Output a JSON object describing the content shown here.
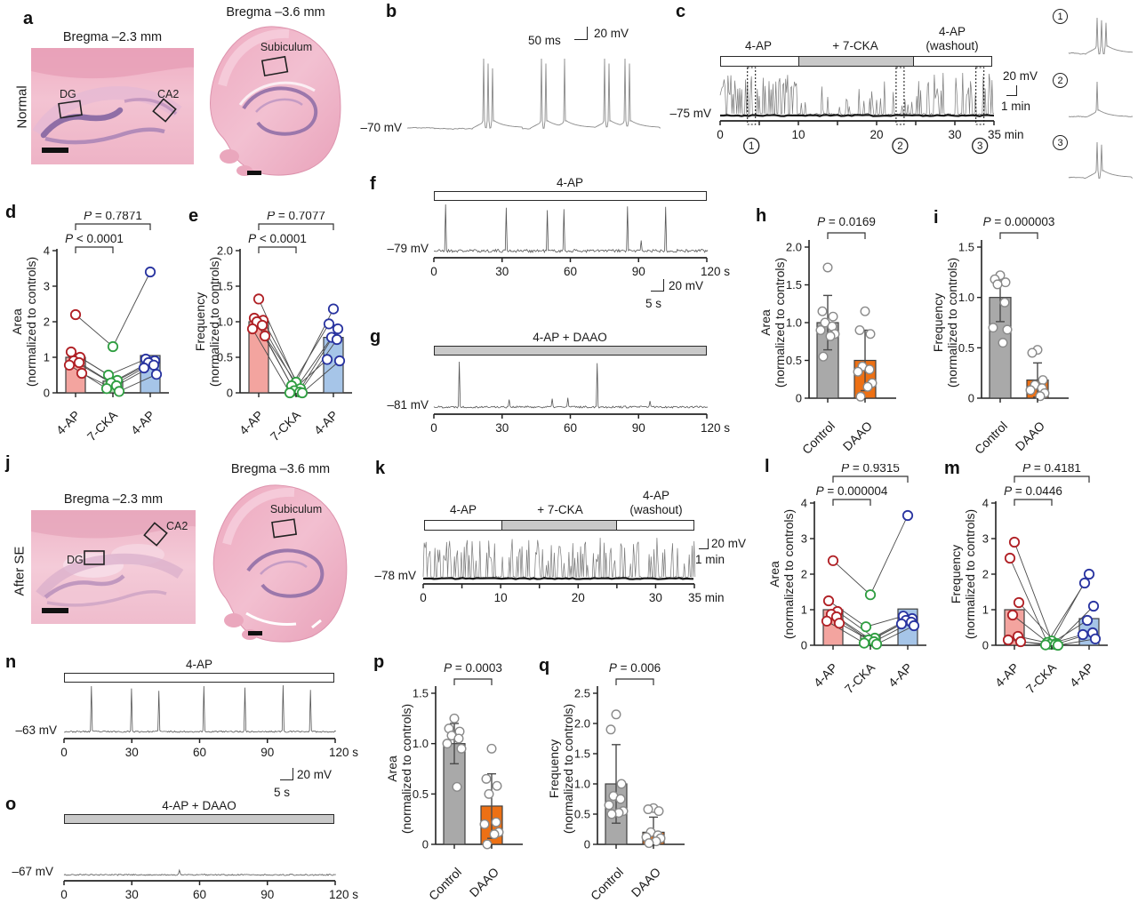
{
  "panels": {
    "a": {
      "letter": "a",
      "row_label": "Normal",
      "left_title": "Bregma –2.3 mm",
      "right_title": "Bregma –3.6 mm",
      "label_dg": "DG",
      "label_ca2": "CA2",
      "label_subiculum": "Subiculum"
    },
    "b": {
      "letter": "b",
      "baseline_label": "–70 mV",
      "scale_time": "50 ms",
      "scale_volt": "20 mV",
      "trace": {
        "bursts": [
          {
            "t": 0.3,
            "n": 3
          },
          {
            "t": 0.53,
            "n": 2
          },
          {
            "t": 0.62,
            "n": 1
          },
          {
            "t": 0.78,
            "n": 2
          },
          {
            "t": 0.86,
            "n": 2
          }
        ]
      }
    },
    "c": {
      "letter": "c",
      "drug1": "4-AP",
      "drug2": "+ 7-CKA",
      "drug3a": "4-AP",
      "drug3b": "(washout)",
      "baseline_label": "–75 mV",
      "scale_volt": "20 mV",
      "scale_time": "1 min",
      "insets": [
        {
          "num": "1",
          "spikes": 3
        },
        {
          "num": "2",
          "spikes": 1
        },
        {
          "num": "3",
          "spikes": 2
        }
      ],
      "trace": {
        "duration": 35,
        "regions": [
          {
            "t0": 0,
            "t1": 10,
            "rate": 5.5,
            "amin": 0.45,
            "amax": 1.0
          },
          {
            "t0": 10,
            "t1": 25,
            "rate": 1.6,
            "amin": 0.15,
            "amax": 0.7
          },
          {
            "t0": 25,
            "t1": 35,
            "rate": 2.8,
            "amin": 0.4,
            "amax": 1.0
          }
        ],
        "spikes": [
          {
            "t": 16.5,
            "a": 0.95
          },
          {
            "t": 21,
            "a": 0.8
          },
          {
            "t": 28.5,
            "a": 1.0
          },
          {
            "t": 31,
            "a": 1.0
          }
        ],
        "ticks": [
          0,
          5,
          10,
          15,
          20,
          25,
          30,
          35
        ],
        "labels": [
          {
            "t": 0,
            "text": "0"
          },
          {
            "t": 10,
            "text": "10"
          },
          {
            "t": 20,
            "text": "20"
          },
          {
            "t": 30,
            "text": "30"
          },
          {
            "t": 35,
            "text": "35 min",
            "end": true
          }
        ],
        "markers": [
          {
            "t": 4,
            "num": "1"
          },
          {
            "t": 23,
            "num": "2"
          },
          {
            "t": 33.2,
            "num": "3"
          }
        ]
      }
    },
    "d": {
      "letter": "d"
    },
    "e": {
      "letter": "e"
    },
    "f": {
      "letter": "f",
      "drug": "4-AP",
      "baseline_label": "–79 mV",
      "scale_volt": "20 mV",
      "scale_time": "5 s",
      "trace": {
        "duration": 120,
        "spikes": [
          {
            "t": 5,
            "a": 1
          },
          {
            "t": 32,
            "a": 0.93
          },
          {
            "t": 50,
            "a": 0.88
          },
          {
            "t": 57,
            "a": 0.9
          },
          {
            "t": 85,
            "a": 0.96
          },
          {
            "t": 91,
            "a": 0.25
          },
          {
            "t": 102,
            "a": 0.95
          }
        ],
        "ticks": [
          0,
          30,
          60,
          90,
          120
        ],
        "labels": [
          {
            "t": 0,
            "text": "0"
          },
          {
            "t": 30,
            "text": "30"
          },
          {
            "t": 60,
            "text": "60"
          },
          {
            "t": 90,
            "text": "90"
          },
          {
            "t": 120,
            "text": "120 s",
            "end": true
          }
        ]
      }
    },
    "g": {
      "letter": "g",
      "drug": "4-AP + DAAO",
      "baseline_label": "–81 mV",
      "trace": {
        "duration": 120,
        "spikes": [
          {
            "t": 11,
            "a": 1
          },
          {
            "t": 33,
            "a": 0.18
          },
          {
            "t": 52,
            "a": 0.2
          },
          {
            "t": 59,
            "a": 0.22
          },
          {
            "t": 72,
            "a": 0.97
          },
          {
            "t": 95,
            "a": 0.15
          }
        ],
        "ticks": [
          0,
          30,
          60,
          90,
          120
        ],
        "labels": [
          {
            "t": 0,
            "text": "0"
          },
          {
            "t": 30,
            "text": "30"
          },
          {
            "t": 60,
            "text": "60"
          },
          {
            "t": 90,
            "text": "90"
          },
          {
            "t": 120,
            "text": "120 s",
            "end": true
          }
        ]
      }
    },
    "h": {
      "letter": "h"
    },
    "i": {
      "letter": "i"
    },
    "j": {
      "letter": "j",
      "row_label": "After SE",
      "left_title": "Bregma –2.3 mm",
      "right_title": "Bregma –3.6 mm",
      "label_dg": "DG",
      "label_ca2": "CA2",
      "label_subiculum": "Subiculum"
    },
    "k": {
      "letter": "k",
      "drug1": "4-AP",
      "drug2": "+ 7-CKA",
      "drug3a": "4-AP",
      "drug3b": "(washout)",
      "baseline_label": "–78 mV",
      "scale_volt": "20 mV",
      "scale_time": "1 min",
      "trace": {
        "duration": 35,
        "regions": [
          {
            "t0": 0,
            "t1": 10,
            "rate": 4.5,
            "amin": 0.4,
            "amax": 0.95
          },
          {
            "t0": 10,
            "t1": 25,
            "rate": 3.6,
            "amin": 0.3,
            "amax": 1.0
          },
          {
            "t0": 25,
            "t1": 35,
            "rate": 3.0,
            "amin": 0.35,
            "amax": 1.0
          }
        ],
        "ticks": [
          0,
          5,
          10,
          15,
          20,
          25,
          30,
          35
        ],
        "labels": [
          {
            "t": 0,
            "text": "0"
          },
          {
            "t": 10,
            "text": "10"
          },
          {
            "t": 20,
            "text": "20"
          },
          {
            "t": 30,
            "text": "30"
          },
          {
            "t": 35,
            "text": "35 min",
            "end": true
          }
        ]
      }
    },
    "l": {
      "letter": "l"
    },
    "m": {
      "letter": "m"
    },
    "n": {
      "letter": "n",
      "drug": "4-AP",
      "baseline_label": "–63 mV",
      "scale_volt": "20 mV",
      "scale_time": "5 s",
      "trace": {
        "duration": 120,
        "spikes": [
          {
            "t": 12,
            "a": 1
          },
          {
            "t": 30,
            "a": 0.95
          },
          {
            "t": 42,
            "a": 0.9
          },
          {
            "t": 62,
            "a": 1
          },
          {
            "t": 80,
            "a": 0.97
          },
          {
            "t": 97,
            "a": 1.02
          },
          {
            "t": 109,
            "a": 0.92
          }
        ],
        "ticks": [
          0,
          30,
          60,
          90,
          120
        ],
        "labels": [
          {
            "t": 0,
            "text": "0"
          },
          {
            "t": 30,
            "text": "30"
          },
          {
            "t": 60,
            "text": "60"
          },
          {
            "t": 90,
            "text": "90"
          },
          {
            "t": 120,
            "text": "120 s",
            "end": true
          }
        ]
      }
    },
    "o": {
      "letter": "o",
      "drug": "4-AP + DAAO",
      "baseline_label": "–67 mV",
      "trace": {
        "duration": 120,
        "spikes": [
          {
            "t": 51,
            "a": 0.12
          }
        ],
        "ticks": [
          0,
          30,
          60,
          90,
          120
        ],
        "labels": [
          {
            "t": 0,
            "text": "0"
          },
          {
            "t": 30,
            "text": "30"
          },
          {
            "t": 60,
            "text": "60"
          },
          {
            "t": 90,
            "text": "90"
          },
          {
            "t": 120,
            "text": "120 s",
            "end": true
          }
        ]
      }
    },
    "p": {
      "letter": "p"
    },
    "q": {
      "letter": "q"
    }
  },
  "chart_data": [
    {
      "id": "d",
      "type": "paired",
      "ylabel": [
        "Area",
        "(normalized to controls)"
      ],
      "ylim": [
        0,
        4
      ],
      "yticks": [
        "0",
        "1",
        "2",
        "3",
        "4"
      ],
      "categories": [
        "4-AP",
        "7-CKA",
        "4-AP"
      ],
      "bar_values": [
        1.0,
        0.33,
        1.05
      ],
      "bar_fills": [
        "#f3a49f",
        "#badbba",
        "#a6c5e8"
      ],
      "point_strokes": [
        "#b01f24",
        "#2f9e41",
        "#2833a0"
      ],
      "points": [
        [
          2.2,
          1.15,
          1.0,
          0.9,
          0.85,
          0.78,
          0.55
        ],
        [
          1.3,
          0.5,
          0.35,
          0.28,
          0.2,
          0.12,
          0.04
        ],
        [
          3.4,
          0.95,
          0.9,
          0.85,
          0.78,
          0.7,
          0.52
        ]
      ],
      "brackets": [
        {
          "label": "P = 0.7871",
          "from": 0,
          "to": 2,
          "level": 1
        },
        {
          "label": "P < 0.0001",
          "from": 0,
          "to": 1,
          "level": 0
        }
      ]
    },
    {
      "id": "e",
      "type": "paired",
      "ylabel": [
        "Frequency",
        "(normalized to controls)"
      ],
      "ylim": [
        0,
        2
      ],
      "yticks": [
        "0",
        "0.5",
        "1.0",
        "1.5",
        "2.0"
      ],
      "categories": [
        "4-AP",
        "7-CKA",
        "4-AP"
      ],
      "bar_values": [
        1.0,
        0.05,
        0.78
      ],
      "bar_fills": [
        "#f3a49f",
        "#badbba",
        "#a6c5e8"
      ],
      "point_strokes": [
        "#b01f24",
        "#2f9e41",
        "#2833a0"
      ],
      "points": [
        [
          1.32,
          1.05,
          1.02,
          1.0,
          0.95,
          0.9,
          0.8
        ],
        [
          0.15,
          0.1,
          0.06,
          0.03,
          0.01,
          0.0,
          0.0
        ],
        [
          1.18,
          0.97,
          0.9,
          0.78,
          0.75,
          0.47,
          0.45
        ]
      ],
      "brackets": [
        {
          "label": "P = 0.7077",
          "from": 0,
          "to": 2,
          "level": 1
        },
        {
          "label": "P < 0.0001",
          "from": 0,
          "to": 1,
          "level": 0
        }
      ]
    },
    {
      "id": "h",
      "type": "twobar",
      "ylabel": [
        "Area",
        "(normalized to controls)"
      ],
      "ylim": [
        0,
        2
      ],
      "yticks": [
        "0",
        "0.5",
        "1.0",
        "1.5",
        "2.0"
      ],
      "categories": [
        "Control",
        "DAAO"
      ],
      "bar_values": [
        1.0,
        0.5
      ],
      "errors": [
        0.36,
        0.4
      ],
      "bar_fills": [
        "#a9a9a9",
        "#ed7014"
      ],
      "points": [
        [
          1.73,
          1.15,
          1.08,
          1.0,
          0.95,
          0.9,
          0.85,
          0.82,
          0.55
        ],
        [
          1.15,
          0.9,
          0.85,
          0.42,
          0.38,
          0.35,
          0.2,
          0.15,
          0.02
        ]
      ],
      "p_label": "P = 0.0169"
    },
    {
      "id": "i",
      "type": "twobar",
      "ylabel": [
        "Frequency",
        "(normalized to controls)"
      ],
      "ylim": [
        0,
        1.5
      ],
      "yticks": [
        "0",
        "0.5",
        "1.0",
        "1.5"
      ],
      "categories": [
        "Control",
        "DAAO"
      ],
      "bar_values": [
        1.0,
        0.18
      ],
      "errors": [
        0.24,
        0.17
      ],
      "bar_fills": [
        "#a9a9a9",
        "#ed7014"
      ],
      "points": [
        [
          1.22,
          1.18,
          1.15,
          1.13,
          0.95,
          0.7,
          0.68,
          0.55
        ],
        [
          0.48,
          0.45,
          0.18,
          0.13,
          0.1,
          0.08,
          0.05,
          0.02
        ]
      ],
      "p_label": "P = 0.000003"
    },
    {
      "id": "l",
      "type": "paired",
      "ylabel": [
        "Area",
        "(normalized to controls)"
      ],
      "ylim": [
        0,
        4
      ],
      "yticks": [
        "0",
        "1",
        "2",
        "3",
        "4"
      ],
      "categories": [
        "4-AP",
        "7-CKA",
        "4-AP"
      ],
      "bar_values": [
        1.0,
        0.27,
        1.02
      ],
      "bar_fills": [
        "#f3a49f",
        "#badbba",
        "#a6c5e8"
      ],
      "point_strokes": [
        "#b01f24",
        "#2f9e41",
        "#2833a0"
      ],
      "points": [
        [
          2.38,
          1.25,
          0.95,
          0.87,
          0.8,
          0.68,
          0.62
        ],
        [
          1.42,
          0.52,
          0.2,
          0.15,
          0.1,
          0.06,
          0.03
        ],
        [
          3.65,
          0.82,
          0.75,
          0.7,
          0.65,
          0.6,
          0.55
        ]
      ],
      "brackets": [
        {
          "label": "P = 0.9315",
          "from": 0,
          "to": 2,
          "level": 1
        },
        {
          "label": "P = 0.000004",
          "from": 0,
          "to": 1,
          "level": 0
        }
      ]
    },
    {
      "id": "m",
      "type": "paired",
      "ylabel": [
        "Frequency",
        "(normalized to controls)"
      ],
      "ylim": [
        0,
        4
      ],
      "yticks": [
        "0",
        "1",
        "2",
        "3",
        "4"
      ],
      "categories": [
        "4-AP",
        "7-CKA",
        "4-AP"
      ],
      "bar_values": [
        1.0,
        0.07,
        0.75
      ],
      "bar_fills": [
        "#f3a49f",
        "#badbba",
        "#a6c5e8"
      ],
      "point_strokes": [
        "#b01f24",
        "#2f9e41",
        "#2833a0"
      ],
      "points": [
        [
          2.9,
          2.45,
          1.2,
          0.85,
          0.25,
          0.15,
          0.1
        ],
        [
          0.12,
          0.08,
          0.05,
          0.03,
          0.02,
          0.01,
          0.0
        ],
        [
          2.0,
          1.75,
          1.1,
          0.7,
          0.35,
          0.3,
          0.18
        ]
      ],
      "brackets": [
        {
          "label": "P = 0.4181",
          "from": 0,
          "to": 2,
          "level": 1
        },
        {
          "label": "P = 0.0446",
          "from": 0,
          "to": 1,
          "level": 0
        }
      ]
    },
    {
      "id": "p",
      "type": "twobar",
      "ylabel": [
        "Area",
        "(normalized to controls)"
      ],
      "ylim": [
        0,
        1.5
      ],
      "yticks": [
        "0",
        "0.5",
        "1.0",
        "1.5"
      ],
      "categories": [
        "Control",
        "DAAO"
      ],
      "bar_values": [
        1.0,
        0.38
      ],
      "errors": [
        0.2,
        0.32
      ],
      "bar_fills": [
        "#a9a9a9",
        "#ed7014"
      ],
      "points": [
        [
          1.25,
          1.15,
          1.12,
          1.08,
          1.05,
          1.0,
          0.95,
          0.57
        ],
        [
          0.95,
          0.65,
          0.58,
          0.5,
          0.22,
          0.2,
          0.12,
          0.1,
          0.0
        ]
      ],
      "p_label": "P = 0.0003"
    },
    {
      "id": "q",
      "type": "twobar",
      "ylabel": [
        "Frequency",
        "(normalized to controls)"
      ],
      "ylim": [
        0,
        2.5
      ],
      "yticks": [
        "0",
        "0.5",
        "1.0",
        "1.5",
        "2.0",
        "2.5"
      ],
      "categories": [
        "Control",
        "DAAO"
      ],
      "bar_values": [
        1.0,
        0.2
      ],
      "errors": [
        0.65,
        0.25
      ],
      "bar_fills": [
        "#a9a9a9",
        "#ed7014"
      ],
      "points": [
        [
          2.15,
          1.9,
          1.0,
          0.8,
          0.75,
          0.65,
          0.55,
          0.52,
          0.5
        ],
        [
          0.6,
          0.58,
          0.55,
          0.2,
          0.15,
          0.12,
          0.1,
          0.05,
          0.02
        ]
      ],
      "p_label": "P = 0.006"
    }
  ]
}
